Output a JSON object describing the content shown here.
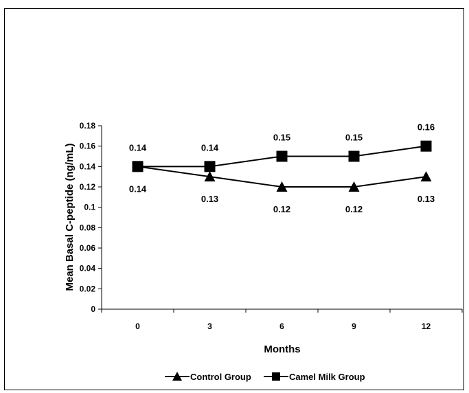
{
  "chart_data": {
    "type": "line",
    "title": "",
    "xlabel": "Months",
    "ylabel": "Mean Basal C-peptide (ng/mL)",
    "categories": [
      "0",
      "3",
      "6",
      "9",
      "12"
    ],
    "ylim": [
      0,
      0.18
    ],
    "yticks": [
      "0",
      "0.02",
      "0.04",
      "0.06",
      "0.08",
      "0.1",
      "0.12",
      "0.14",
      "0.16",
      "0.18"
    ],
    "grid": false,
    "legend_position": "bottom",
    "series": [
      {
        "name": "Control Group",
        "marker": "triangle",
        "color": "#000000",
        "values": [
          0.14,
          0.13,
          0.12,
          0.12,
          0.13
        ],
        "labels": [
          "0.14",
          "0.13",
          "0.12",
          "0.12",
          "0.13"
        ],
        "label_position": "below"
      },
      {
        "name": "Camel Milk Group",
        "marker": "square",
        "color": "#000000",
        "values": [
          0.14,
          0.14,
          0.15,
          0.15,
          0.16
        ],
        "labels": [
          "0.14",
          "0.14",
          "0.15",
          "0.15",
          "0.16"
        ],
        "label_position": "above"
      }
    ]
  }
}
